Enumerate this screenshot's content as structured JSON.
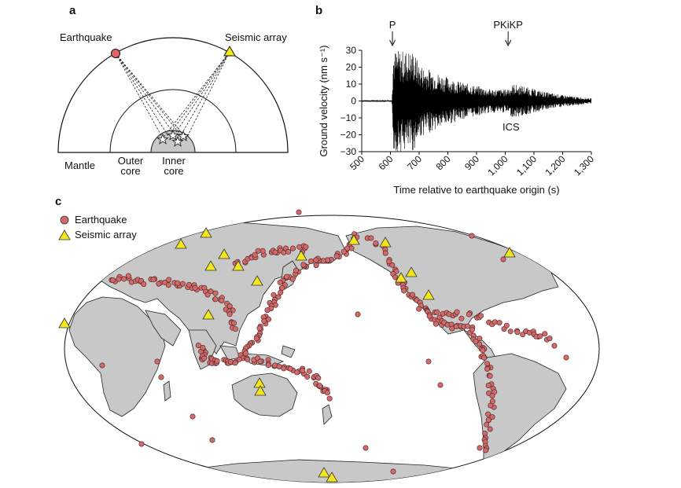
{
  "panel_a": {
    "letter": "a",
    "earthquake_label": "Earthquake",
    "array_label": "Seismic array",
    "mantle_label": "Mantle",
    "outer_core_label_1": "Outer",
    "outer_core_label_2": "core",
    "inner_core_label_1": "Inner",
    "inner_core_label_2": "core",
    "colors": {
      "earthquake": "#e06666",
      "array": "#f3e61a",
      "core": "#c8c8c8"
    }
  },
  "panel_b": {
    "letter": "b",
    "p_label": "P",
    "pkikp_label": "PKiKP",
    "ics_label": "ICS"
  },
  "panel_c": {
    "letter": "c",
    "legend": {
      "earthquake": "Earthquake",
      "array": "Seismic array"
    },
    "colors": {
      "land": "#c8c8c8",
      "ocean": "#ffffff",
      "quake": "#d16a6a",
      "array": "#f3e61a"
    }
  },
  "chart_data": [
    {
      "type": "line",
      "title": "",
      "xlabel": "Time relative to earthquake origin (s)",
      "ylabel": "Ground velocity (nm s⁻¹)",
      "xlim": [
        500,
        1300
      ],
      "ylim": [
        -30,
        30
      ],
      "x_ticks": [
        "500",
        "600",
        "700",
        "800",
        "900",
        "1,000",
        "1,100",
        "1,200",
        "1,300"
      ],
      "y_ticks": [
        "30",
        "20",
        "10",
        "0",
        "−10",
        "−20",
        "−30"
      ],
      "annotations": [
        {
          "label": "P",
          "x": 607
        },
        {
          "label": "PKiKP",
          "x": 1010
        },
        {
          "label": "ICS",
          "x": 1020,
          "y": -15
        }
      ],
      "envelope": {
        "x": [
          500,
          605,
          610,
          680,
          700,
          720,
          760,
          800,
          850,
          900,
          950,
          1000,
          1030,
          1060,
          1100,
          1150,
          1200,
          1250,
          1300
        ],
        "amplitude": [
          0.5,
          0.5,
          30,
          30,
          22,
          20,
          17,
          14,
          11,
          9,
          7,
          7,
          10,
          9,
          7,
          5,
          3.5,
          2.5,
          1.5
        ]
      }
    }
  ]
}
